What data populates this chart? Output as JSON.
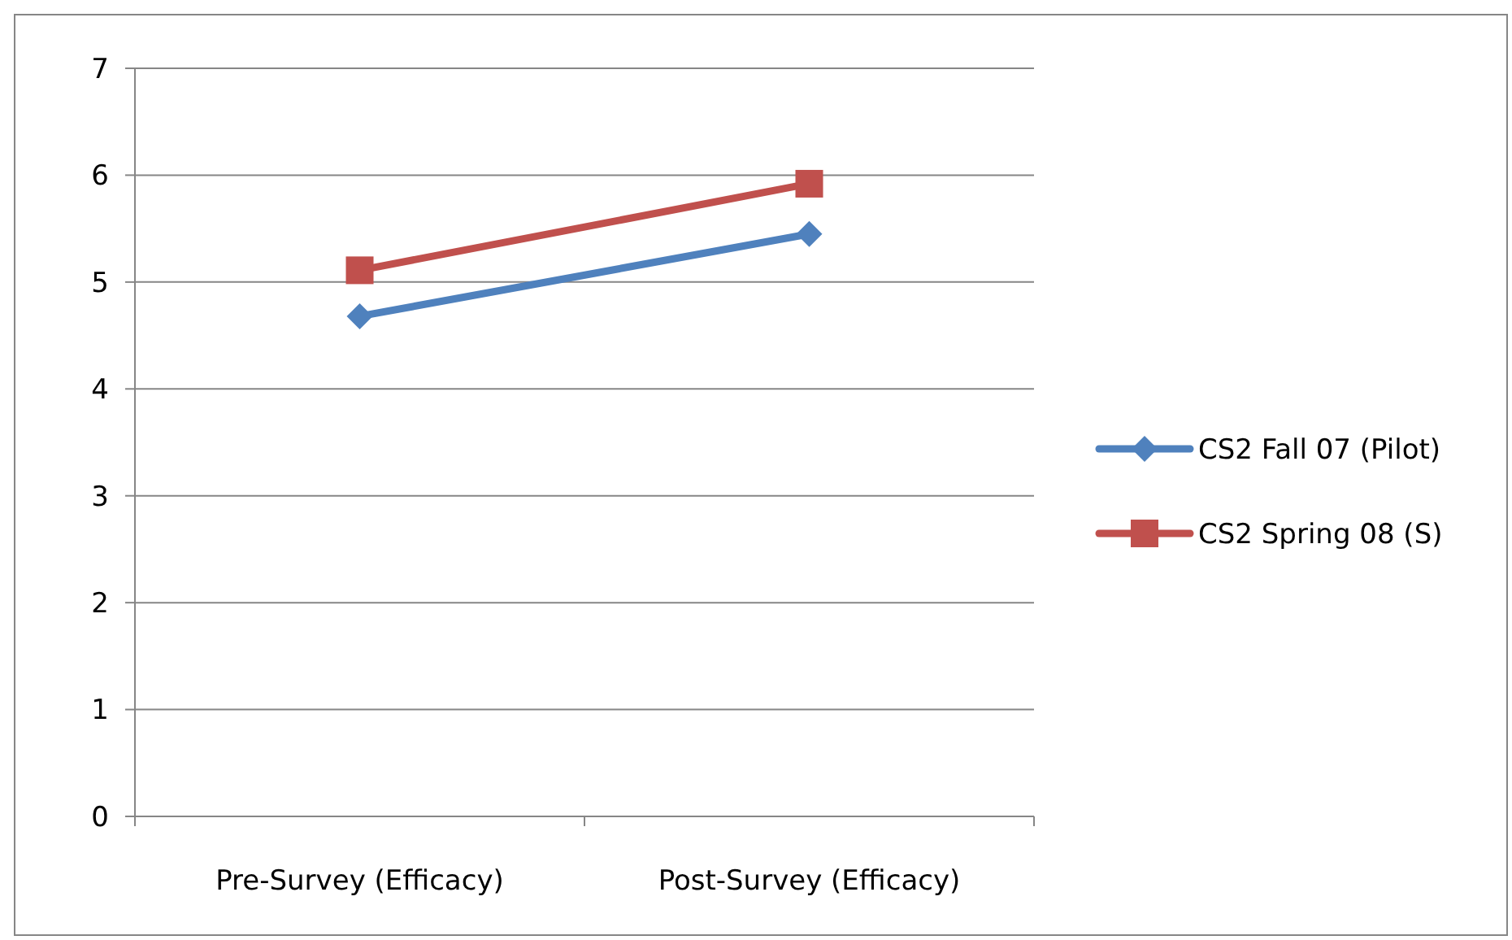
{
  "chart_data": {
    "type": "line",
    "categories": [
      "Pre-Survey (Efficacy)",
      "Post-Survey (Efficacy)"
    ],
    "series": [
      {
        "name": "CS2 Fall 07 (Pilot)",
        "color": "#4f81bd",
        "marker": "diamond",
        "values": [
          4.68,
          5.45
        ]
      },
      {
        "name": "CS2 Spring 08 (S)",
        "color": "#c0504d",
        "marker": "square",
        "values": [
          5.11,
          5.92
        ]
      }
    ],
    "ylim": [
      0,
      7
    ],
    "yticks": [
      0,
      1,
      2,
      3,
      4,
      5,
      6,
      7
    ],
    "grid": "y",
    "legend": "right"
  }
}
